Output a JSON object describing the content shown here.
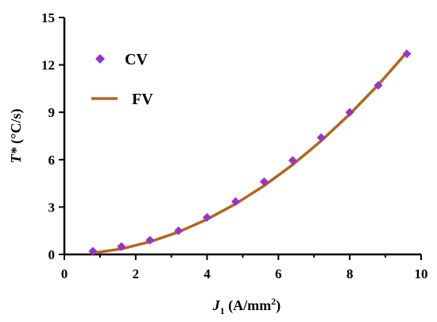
{
  "chart_data": {
    "type": "scatter",
    "title": "",
    "xlabel": {
      "main": "J",
      "sub": "1",
      "rest": " (A/mm",
      "sup": "2",
      "close": ")"
    },
    "ylabel": {
      "main": "T*",
      "rest": " (°C/s)"
    },
    "xlim": [
      0,
      10
    ],
    "ylim": [
      0,
      15
    ],
    "xticks": [
      0,
      2,
      4,
      6,
      8,
      10
    ],
    "yticks": [
      0,
      3,
      6,
      9,
      12,
      15
    ],
    "grid": false,
    "legend_position": "top-left",
    "series": [
      {
        "name": "CV",
        "kind": "markers",
        "marker": "diamond",
        "color": "#9933cc",
        "x": [
          0.8,
          1.6,
          2.4,
          3.2,
          4.0,
          4.8,
          5.6,
          6.4,
          7.2,
          8.0,
          8.8,
          9.6
        ],
        "y": [
          0.2,
          0.5,
          0.9,
          1.5,
          2.35,
          3.35,
          4.6,
          5.95,
          7.4,
          9.0,
          10.7,
          12.7
        ]
      },
      {
        "name": "FV",
        "kind": "line",
        "color": "#b5651d",
        "x": [
          0.8,
          1.6,
          2.4,
          3.2,
          4.0,
          4.8,
          5.6,
          6.4,
          7.2,
          8.0,
          8.8,
          9.6
        ],
        "y": [
          0.09,
          0.35,
          0.8,
          1.42,
          2.22,
          3.2,
          4.35,
          5.68,
          7.19,
          8.88,
          10.74,
          12.8
        ]
      }
    ]
  }
}
